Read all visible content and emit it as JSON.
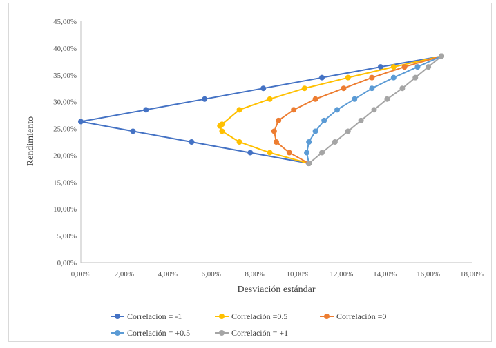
{
  "chart_data": {
    "type": "scatter",
    "title": "",
    "xlabel": "Desviación estándar",
    "ylabel": "Rendimiento",
    "xlim": [
      0,
      18
    ],
    "ylim": [
      0,
      45
    ],
    "x_ticks": [
      "0,00%",
      "2,00%",
      "4,00%",
      "6,00%",
      "8,00%",
      "10,00%",
      "12,00%",
      "14,00%",
      "16,00%",
      "18,00%"
    ],
    "y_ticks": [
      "0,00%",
      "5,00%",
      "10,00%",
      "15,00%",
      "20,00%",
      "25,00%",
      "30,00%",
      "35,00%",
      "40,00%",
      "45,00%"
    ],
    "grid": false,
    "legend_position": "bottom",
    "series": [
      {
        "name": "Correlación = -1",
        "color": "#4472C4",
        "x": [
          16.6,
          13.8,
          11.1,
          8.4,
          5.7,
          3.0,
          0.0,
          2.4,
          5.1,
          7.8,
          10.5
        ],
        "y": [
          38.5,
          36.5,
          34.5,
          32.5,
          30.5,
          28.5,
          26.3,
          24.5,
          22.5,
          20.5,
          18.5
        ]
      },
      {
        "name": "Correlación =0.5",
        "color": "#FFC000",
        "x": [
          16.6,
          14.4,
          12.3,
          10.3,
          8.7,
          7.3,
          6.5,
          6.4,
          6.5,
          7.3,
          8.7,
          10.5
        ],
        "y": [
          38.5,
          36.5,
          34.5,
          32.5,
          30.5,
          28.5,
          25.8,
          25.5,
          24.5,
          22.5,
          20.5,
          18.5
        ]
      },
      {
        "name": "Correlación =0",
        "color": "#ED7D31",
        "x": [
          16.6,
          14.9,
          13.4,
          12.1,
          10.8,
          9.8,
          9.1,
          8.9,
          9.0,
          9.6,
          10.5
        ],
        "y": [
          38.5,
          36.5,
          34.5,
          32.5,
          30.5,
          28.5,
          26.5,
          24.5,
          22.5,
          20.5,
          18.5
        ]
      },
      {
        "name": "Correlación = +0.5",
        "color": "#5B9BD5",
        "x": [
          16.6,
          15.5,
          14.4,
          13.4,
          12.6,
          11.8,
          11.2,
          10.8,
          10.5,
          10.4,
          10.5
        ],
        "y": [
          38.5,
          36.5,
          34.5,
          32.5,
          30.5,
          28.5,
          26.5,
          24.5,
          22.5,
          20.5,
          18.5
        ]
      },
      {
        "name": "Correlación = +1",
        "color": "#A5A5A5",
        "x": [
          16.6,
          16.0,
          15.4,
          14.8,
          14.1,
          13.5,
          12.9,
          12.3,
          11.7,
          11.1,
          10.5
        ],
        "y": [
          38.5,
          36.5,
          34.5,
          32.5,
          30.5,
          28.5,
          26.5,
          24.5,
          22.5,
          20.5,
          18.5
        ]
      }
    ]
  }
}
